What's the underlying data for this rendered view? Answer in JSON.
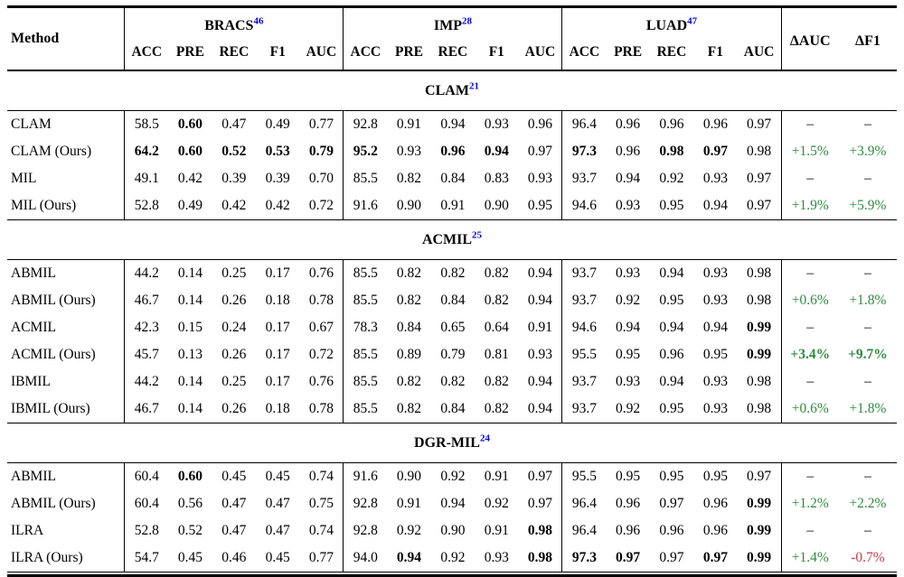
{
  "page": {
    "background": "#ffffff"
  },
  "colors": {
    "reference_blue": "#0000EE",
    "positive_green": "#2e8b3e",
    "negative_red": "#cc3944",
    "text": "#000000"
  },
  "table": {
    "method_header": "Method",
    "groups": [
      {
        "name": "BRACS",
        "ref": "46",
        "metrics": [
          "ACC",
          "PRE",
          "REC",
          "F1",
          "AUC"
        ]
      },
      {
        "name": "IMP",
        "ref": "28",
        "metrics": [
          "ACC",
          "PRE",
          "REC",
          "F1",
          "AUC"
        ]
      },
      {
        "name": "LUAD",
        "ref": "47",
        "metrics": [
          "ACC",
          "PRE",
          "REC",
          "F1",
          "AUC"
        ]
      }
    ],
    "delta_headers": [
      "ΔAUC",
      "ΔF1"
    ],
    "sections": [
      {
        "title": "CLAM",
        "ref": "21",
        "rows": [
          {
            "method": "CLAM",
            "cells": [
              {
                "v": "58.5"
              },
              {
                "v": "0.60",
                "b": 1
              },
              {
                "v": "0.47"
              },
              {
                "v": "0.49"
              },
              {
                "v": "0.77"
              },
              {
                "v": "92.8"
              },
              {
                "v": "0.91"
              },
              {
                "v": "0.94"
              },
              {
                "v": "0.93"
              },
              {
                "v": "0.96"
              },
              {
                "v": "96.4"
              },
              {
                "v": "0.96"
              },
              {
                "v": "0.96"
              },
              {
                "v": "0.96"
              },
              {
                "v": "0.97"
              }
            ],
            "deltas": [
              {
                "v": "–"
              },
              {
                "v": "–"
              }
            ]
          },
          {
            "method": "CLAM (Ours)",
            "cells": [
              {
                "v": "64.2",
                "b": 1
              },
              {
                "v": "0.60",
                "b": 1
              },
              {
                "v": "0.52",
                "b": 1
              },
              {
                "v": "0.53",
                "b": 1
              },
              {
                "v": "0.79",
                "b": 1
              },
              {
                "v": "95.2",
                "b": 1
              },
              {
                "v": "0.93"
              },
              {
                "v": "0.96",
                "b": 1
              },
              {
                "v": "0.94",
                "b": 1
              },
              {
                "v": "0.97"
              },
              {
                "v": "97.3",
                "b": 1
              },
              {
                "v": "0.96"
              },
              {
                "v": "0.98",
                "b": 1
              },
              {
                "v": "0.97",
                "b": 1
              },
              {
                "v": "0.98"
              }
            ],
            "deltas": [
              {
                "v": "+1.5%",
                "c": "g"
              },
              {
                "v": "+3.9%",
                "c": "g"
              }
            ]
          },
          {
            "method": "MIL",
            "cells": [
              {
                "v": "49.1"
              },
              {
                "v": "0.42"
              },
              {
                "v": "0.39"
              },
              {
                "v": "0.39"
              },
              {
                "v": "0.70"
              },
              {
                "v": "85.5"
              },
              {
                "v": "0.82"
              },
              {
                "v": "0.84"
              },
              {
                "v": "0.83"
              },
              {
                "v": "0.93"
              },
              {
                "v": "93.7"
              },
              {
                "v": "0.94"
              },
              {
                "v": "0.92"
              },
              {
                "v": "0.93"
              },
              {
                "v": "0.97"
              }
            ],
            "deltas": [
              {
                "v": "–"
              },
              {
                "v": "–"
              }
            ]
          },
          {
            "method": "MIL (Ours)",
            "cells": [
              {
                "v": "52.8"
              },
              {
                "v": "0.49"
              },
              {
                "v": "0.42"
              },
              {
                "v": "0.42"
              },
              {
                "v": "0.72"
              },
              {
                "v": "91.6"
              },
              {
                "v": "0.90"
              },
              {
                "v": "0.91"
              },
              {
                "v": "0.90"
              },
              {
                "v": "0.95"
              },
              {
                "v": "94.6"
              },
              {
                "v": "0.93"
              },
              {
                "v": "0.95"
              },
              {
                "v": "0.94"
              },
              {
                "v": "0.97"
              }
            ],
            "deltas": [
              {
                "v": "+1.9%",
                "c": "g"
              },
              {
                "v": "+5.9%",
                "c": "g"
              }
            ]
          }
        ]
      },
      {
        "title": "ACMIL",
        "ref": "25",
        "rows": [
          {
            "method": "ABMIL",
            "cells": [
              {
                "v": "44.2"
              },
              {
                "v": "0.14"
              },
              {
                "v": "0.25"
              },
              {
                "v": "0.17"
              },
              {
                "v": "0.76"
              },
              {
                "v": "85.5"
              },
              {
                "v": "0.82"
              },
              {
                "v": "0.82"
              },
              {
                "v": "0.82"
              },
              {
                "v": "0.94"
              },
              {
                "v": "93.7"
              },
              {
                "v": "0.93"
              },
              {
                "v": "0.94"
              },
              {
                "v": "0.93"
              },
              {
                "v": "0.98"
              }
            ],
            "deltas": [
              {
                "v": "–"
              },
              {
                "v": "–"
              }
            ]
          },
          {
            "method": "ABMIL (Ours)",
            "cells": [
              {
                "v": "46.7"
              },
              {
                "v": "0.14"
              },
              {
                "v": "0.26"
              },
              {
                "v": "0.18"
              },
              {
                "v": "0.78"
              },
              {
                "v": "85.5"
              },
              {
                "v": "0.82"
              },
              {
                "v": "0.84"
              },
              {
                "v": "0.82"
              },
              {
                "v": "0.94"
              },
              {
                "v": "93.7"
              },
              {
                "v": "0.92"
              },
              {
                "v": "0.95"
              },
              {
                "v": "0.93"
              },
              {
                "v": "0.98"
              }
            ],
            "deltas": [
              {
                "v": "+0.6%",
                "c": "g"
              },
              {
                "v": "+1.8%",
                "c": "g"
              }
            ]
          },
          {
            "method": "ACMIL",
            "cells": [
              {
                "v": "42.3"
              },
              {
                "v": "0.15"
              },
              {
                "v": "0.24"
              },
              {
                "v": "0.17"
              },
              {
                "v": "0.67"
              },
              {
                "v": "78.3"
              },
              {
                "v": "0.84"
              },
              {
                "v": "0.65"
              },
              {
                "v": "0.64"
              },
              {
                "v": "0.91"
              },
              {
                "v": "94.6"
              },
              {
                "v": "0.94"
              },
              {
                "v": "0.94"
              },
              {
                "v": "0.94"
              },
              {
                "v": "0.99",
                "b": 1
              }
            ],
            "deltas": [
              {
                "v": "–"
              },
              {
                "v": "–"
              }
            ]
          },
          {
            "method": "ACMIL (Ours)",
            "cells": [
              {
                "v": "45.7"
              },
              {
                "v": "0.13"
              },
              {
                "v": "0.26"
              },
              {
                "v": "0.17"
              },
              {
                "v": "0.72"
              },
              {
                "v": "85.5"
              },
              {
                "v": "0.89"
              },
              {
                "v": "0.79"
              },
              {
                "v": "0.81"
              },
              {
                "v": "0.93"
              },
              {
                "v": "95.5"
              },
              {
                "v": "0.95"
              },
              {
                "v": "0.96"
              },
              {
                "v": "0.95"
              },
              {
                "v": "0.99",
                "b": 1
              }
            ],
            "deltas": [
              {
                "v": "+3.4%",
                "c": "g",
                "b": 1
              },
              {
                "v": "+9.7%",
                "c": "g",
                "b": 1
              }
            ]
          },
          {
            "method": "IBMIL",
            "cells": [
              {
                "v": "44.2"
              },
              {
                "v": "0.14"
              },
              {
                "v": "0.25"
              },
              {
                "v": "0.17"
              },
              {
                "v": "0.76"
              },
              {
                "v": "85.5"
              },
              {
                "v": "0.82"
              },
              {
                "v": "0.82"
              },
              {
                "v": "0.82"
              },
              {
                "v": "0.94"
              },
              {
                "v": "93.7"
              },
              {
                "v": "0.93"
              },
              {
                "v": "0.94"
              },
              {
                "v": "0.93"
              },
              {
                "v": "0.98"
              }
            ],
            "deltas": [
              {
                "v": "–"
              },
              {
                "v": "–"
              }
            ]
          },
          {
            "method": "IBMIL (Ours)",
            "cells": [
              {
                "v": "46.7"
              },
              {
                "v": "0.14"
              },
              {
                "v": "0.26"
              },
              {
                "v": "0.18"
              },
              {
                "v": "0.78"
              },
              {
                "v": "85.5"
              },
              {
                "v": "0.82"
              },
              {
                "v": "0.84"
              },
              {
                "v": "0.82"
              },
              {
                "v": "0.94"
              },
              {
                "v": "93.7"
              },
              {
                "v": "0.92"
              },
              {
                "v": "0.95"
              },
              {
                "v": "0.93"
              },
              {
                "v": "0.98"
              }
            ],
            "deltas": [
              {
                "v": "+0.6%",
                "c": "g"
              },
              {
                "v": "+1.8%",
                "c": "g"
              }
            ]
          }
        ]
      },
      {
        "title": "DGR-MIL",
        "ref": "24",
        "rows": [
          {
            "method": "ABMIL",
            "cells": [
              {
                "v": "60.4"
              },
              {
                "v": "0.60",
                "b": 1
              },
              {
                "v": "0.45"
              },
              {
                "v": "0.45"
              },
              {
                "v": "0.74"
              },
              {
                "v": "91.6"
              },
              {
                "v": "0.90"
              },
              {
                "v": "0.92"
              },
              {
                "v": "0.91"
              },
              {
                "v": "0.97"
              },
              {
                "v": "95.5"
              },
              {
                "v": "0.95"
              },
              {
                "v": "0.95"
              },
              {
                "v": "0.95"
              },
              {
                "v": "0.97"
              }
            ],
            "deltas": [
              {
                "v": "–"
              },
              {
                "v": "–"
              }
            ]
          },
          {
            "method": "ABMIL (Ours)",
            "cells": [
              {
                "v": "60.4"
              },
              {
                "v": "0.56"
              },
              {
                "v": "0.47"
              },
              {
                "v": "0.47"
              },
              {
                "v": "0.75"
              },
              {
                "v": "92.8"
              },
              {
                "v": "0.91"
              },
              {
                "v": "0.94"
              },
              {
                "v": "0.92"
              },
              {
                "v": "0.97"
              },
              {
                "v": "96.4"
              },
              {
                "v": "0.96"
              },
              {
                "v": "0.97"
              },
              {
                "v": "0.96"
              },
              {
                "v": "0.99",
                "b": 1
              }
            ],
            "deltas": [
              {
                "v": "+1.2%",
                "c": "g"
              },
              {
                "v": "+2.2%",
                "c": "g"
              }
            ]
          },
          {
            "method": "ILRA",
            "cells": [
              {
                "v": "52.8"
              },
              {
                "v": "0.52"
              },
              {
                "v": "0.47"
              },
              {
                "v": "0.47"
              },
              {
                "v": "0.74"
              },
              {
                "v": "92.8"
              },
              {
                "v": "0.92"
              },
              {
                "v": "0.90"
              },
              {
                "v": "0.91"
              },
              {
                "v": "0.98",
                "b": 1
              },
              {
                "v": "96.4"
              },
              {
                "v": "0.96"
              },
              {
                "v": "0.96"
              },
              {
                "v": "0.96"
              },
              {
                "v": "0.99",
                "b": 1
              }
            ],
            "deltas": [
              {
                "v": "–"
              },
              {
                "v": "–"
              }
            ]
          },
          {
            "method": "ILRA (Ours)",
            "cells": [
              {
                "v": "54.7"
              },
              {
                "v": "0.45"
              },
              {
                "v": "0.46"
              },
              {
                "v": "0.45"
              },
              {
                "v": "0.77"
              },
              {
                "v": "94.0"
              },
              {
                "v": "0.94",
                "b": 1
              },
              {
                "v": "0.92"
              },
              {
                "v": "0.93"
              },
              {
                "v": "0.98",
                "b": 1
              },
              {
                "v": "97.3",
                "b": 1
              },
              {
                "v": "0.97",
                "b": 1
              },
              {
                "v": "0.97"
              },
              {
                "v": "0.97",
                "b": 1
              },
              {
                "v": "0.99",
                "b": 1
              }
            ],
            "deltas": [
              {
                "v": "+1.4%",
                "c": "g"
              },
              {
                "v": "-0.7%",
                "c": "r"
              }
            ]
          }
        ]
      }
    ]
  }
}
